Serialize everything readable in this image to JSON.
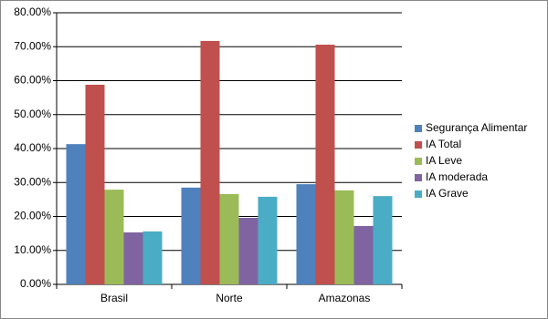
{
  "chart_data": {
    "type": "bar",
    "categories": [
      "Brasil",
      "Norte",
      "Amazonas"
    ],
    "series": [
      {
        "name": "Segurança Alimentar",
        "color": "#4f81bd",
        "values": [
          41.3,
          28.5,
          29.5
        ]
      },
      {
        "name": "IA Total",
        "color": "#c0504d",
        "values": [
          58.8,
          71.7,
          70.6
        ]
      },
      {
        "name": "IA Leve",
        "color": "#9bbb59",
        "values": [
          27.9,
          26.6,
          27.7
        ]
      },
      {
        "name": "IA moderada",
        "color": "#8064a2",
        "values": [
          15.3,
          19.6,
          17.2
        ]
      },
      {
        "name": "IA Grave",
        "color": "#4bacc6",
        "values": [
          15.6,
          25.8,
          26.0
        ]
      }
    ],
    "ylim": [
      0,
      80
    ],
    "yticks": [
      {
        "value": 0,
        "label": "0.00%"
      },
      {
        "value": 10,
        "label": "10.00%"
      },
      {
        "value": 20,
        "label": "20.00%"
      },
      {
        "value": 30,
        "label": "30.00%"
      },
      {
        "value": 40,
        "label": "40.00%"
      },
      {
        "value": 50,
        "label": "50.00%"
      },
      {
        "value": 60,
        "label": "60.00%"
      },
      {
        "value": 70,
        "label": "70.00%"
      },
      {
        "value": 80,
        "label": "80.00%"
      }
    ],
    "grid": true
  }
}
